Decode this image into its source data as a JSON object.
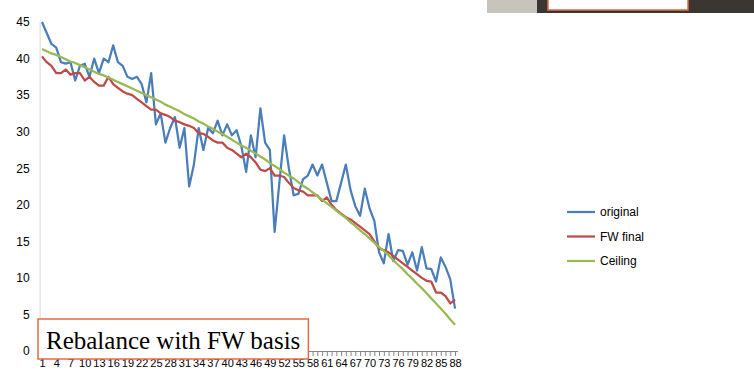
{
  "chart_data": {
    "type": "line",
    "annotation": "Rebalance with FW basis",
    "categories": [
      "1",
      null,
      null,
      "4",
      null,
      null,
      "7",
      null,
      null,
      "10",
      null,
      null,
      "13",
      null,
      null,
      "16",
      null,
      null,
      "19",
      null,
      null,
      "22",
      null,
      null,
      "25",
      null,
      null,
      "28",
      null,
      null,
      "31",
      null,
      null,
      "34",
      null,
      null,
      "37",
      null,
      null,
      "40",
      null,
      null,
      "43",
      null,
      null,
      "46",
      null,
      null,
      "49",
      null,
      null,
      "52",
      null,
      null,
      "55",
      null,
      null,
      "58",
      null,
      null,
      "61",
      null,
      null,
      "64",
      null,
      null,
      "67",
      null,
      null,
      "70",
      null,
      null,
      "73",
      null,
      null,
      "76",
      null,
      null,
      "79",
      null,
      null,
      "82",
      null,
      null,
      "85",
      null,
      null,
      "88"
    ],
    "series": [
      {
        "name": "original",
        "color": "#4a7ebb",
        "values": [
          45,
          43.5,
          42,
          41.5,
          39.5,
          39.3,
          39.5,
          37,
          39,
          39.3,
          37.5,
          40,
          38,
          40,
          39.5,
          41.8,
          39.5,
          39,
          37.5,
          37.2,
          37.5,
          36.5,
          34,
          38,
          31,
          32.5,
          28.5,
          30.5,
          32,
          27.8,
          30.5,
          22.5,
          25.5,
          30.5,
          27.5,
          30.5,
          29.8,
          31.5,
          29.5,
          31,
          29.5,
          30.2,
          28,
          24.5,
          29.5,
          26.5,
          33.2,
          28.5,
          27.5,
          16.3,
          23,
          29.5,
          25,
          21.3,
          21.5,
          23.5,
          24,
          25.5,
          24,
          25.5,
          23,
          20.5,
          20.5,
          23,
          25.5,
          22,
          19.8,
          18.5,
          22.2,
          19.5,
          17.8,
          13.5,
          12,
          16,
          12.3,
          13.8,
          13.7,
          11.8,
          13.5,
          11,
          14.2,
          11.3,
          11.2,
          9.5,
          12.8,
          11.5,
          9.8,
          5.8
        ]
      },
      {
        "name": "FW final",
        "color": "#be4b48",
        "values": [
          40.3,
          39.5,
          39,
          38,
          38,
          38.5,
          37.8,
          38,
          38,
          37,
          37.5,
          36.8,
          36.3,
          36.3,
          37.5,
          36.5,
          36,
          35.5,
          35.2,
          35,
          34.5,
          34,
          33.5,
          33,
          33,
          32.5,
          32.3,
          32,
          31.5,
          31.3,
          31,
          30.8,
          30.5,
          29.8,
          29.7,
          29.3,
          28.8,
          28.5,
          28.5,
          27.8,
          27.5,
          27,
          26.5,
          27,
          26.5,
          25.8,
          24.8,
          24.6,
          25,
          24,
          24,
          23.8,
          23,
          22.3,
          22,
          21.8,
          21.3,
          21.3,
          21.3,
          20.5,
          21,
          20,
          19.3,
          18.8,
          18.3,
          18,
          17.5,
          17,
          16.5,
          16,
          15,
          14,
          13.8,
          13.5,
          13,
          12.5,
          12,
          11.5,
          11,
          10.5,
          10,
          9.6,
          9.5,
          8,
          8,
          7.5,
          6.5,
          7
        ]
      },
      {
        "name": "Ceiling",
        "color": "#98b954",
        "values": [
          41.3,
          41,
          40.7,
          40.5,
          40.2,
          39.9,
          39.6,
          39.4,
          39.1,
          38.8,
          38.5,
          38.2,
          37.9,
          37.7,
          37.4,
          37.1,
          36.8,
          36.5,
          36.2,
          35.9,
          35.6,
          35.3,
          35,
          34.7,
          34.4,
          34.1,
          33.7,
          33.4,
          33.1,
          32.8,
          32.4,
          32.1,
          31.8,
          31.4,
          31.1,
          30.7,
          30.4,
          30,
          29.7,
          29.3,
          28.9,
          28.5,
          28.1,
          27.8,
          27.4,
          27,
          26.6,
          26.2,
          25.7,
          25.3,
          24.9,
          24.4,
          24,
          23.6,
          23.1,
          22.6,
          22.2,
          21.7,
          21.2,
          20.7,
          20.2,
          19.7,
          19.2,
          18.7,
          18.2,
          17.6,
          17.1,
          16.5,
          16,
          15.4,
          14.8,
          14.2,
          13.7,
          13.1,
          12.4,
          11.8,
          11.2,
          10.5,
          9.9,
          9.2,
          8.6,
          7.9,
          7.2,
          6.5,
          5.8,
          5.1,
          4.3,
          3.6
        ]
      }
    ],
    "ylim": [
      0,
      45
    ],
    "yticks": [
      0,
      5,
      10,
      15,
      20,
      25,
      30,
      35,
      40,
      45
    ],
    "grid": false,
    "legend": "right"
  }
}
